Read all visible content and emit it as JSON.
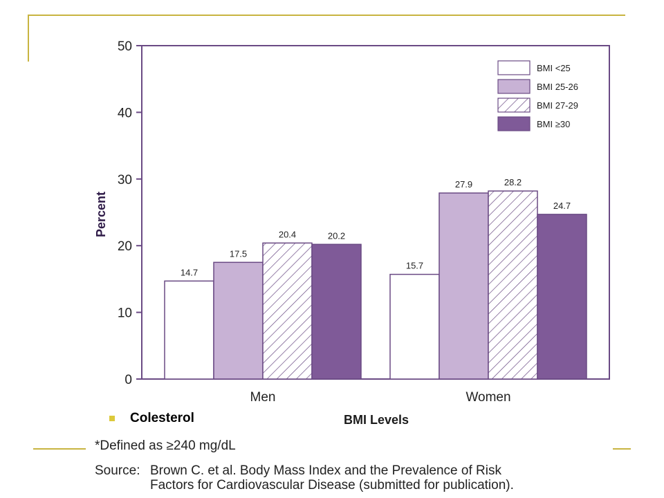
{
  "bullet_text": "Colesterol",
  "footnote": "*Defined as ≥240 mg/dL",
  "source": {
    "label": "Source:",
    "line1": "Brown C. et al.  Body Mass Index and the Prevalence of Risk",
    "line2": "Factors for Cardiovascular Disease (submitted for publication)."
  },
  "colors": {
    "accent_line": "#c8b440",
    "bullet": "#dcc93b",
    "axis": "#6a4a84",
    "bmi_lt25": "#ffffff",
    "bmi_25_26": "#c8b2d5",
    "bmi_27_29_hatch": "#6a4a84",
    "bmi_ge30": "#7f5a98"
  },
  "chart_data": {
    "type": "bar",
    "title": "",
    "xlabel": "BMI Levels",
    "ylabel": "Percent",
    "ylim": [
      0,
      50
    ],
    "yticks": [
      "0",
      "10",
      "20",
      "30",
      "40",
      "50"
    ],
    "grid": false,
    "legend_position": "top-right",
    "categories": [
      "Men",
      "Women"
    ],
    "series": [
      {
        "name": "BMI <25",
        "values": [
          14.7,
          15.7
        ],
        "labels": [
          "14.7",
          "15.7"
        ],
        "fill": "white"
      },
      {
        "name": "BMI 25-26",
        "values": [
          17.5,
          27.9
        ],
        "labels": [
          "17.5",
          "27.9"
        ],
        "fill": "light-purple"
      },
      {
        "name": "BMI 27-29",
        "values": [
          20.4,
          28.2
        ],
        "labels": [
          "20.4",
          "28.2"
        ],
        "fill": "hatched"
      },
      {
        "name": "BMI ≥30",
        "values": [
          20.2,
          24.7
        ],
        "labels": [
          "20.2",
          "24.7"
        ],
        "fill": "dark-purple"
      }
    ]
  }
}
